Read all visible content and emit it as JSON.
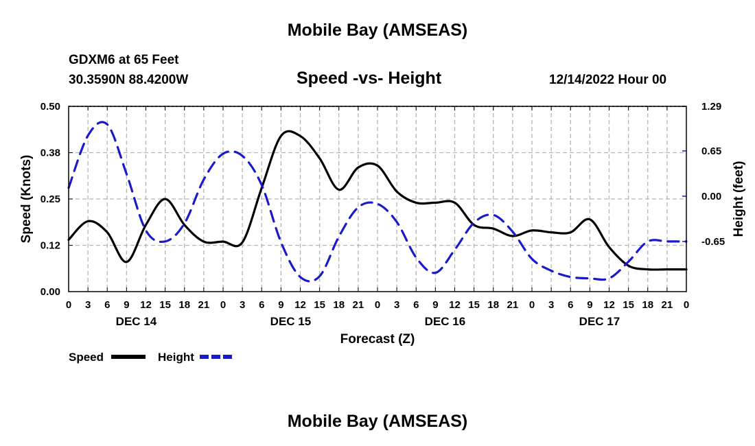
{
  "title": "Mobile Bay (AMSEAS)",
  "footer_title": "Mobile Bay (AMSEAS)",
  "station": "GDXM6 at 65 Feet",
  "location": "30.3590N  88.4200W",
  "subtitle": "Speed -vs- Height",
  "timestamp": "12/14/2022 Hour 00",
  "colors": {
    "speed": "#000000",
    "height": "#1a1acc",
    "grid": "#b4b4b4"
  },
  "chart_data": {
    "type": "line",
    "title": "Speed -vs- Height",
    "xlabel": "Forecast (Z)",
    "ylabel": "Speed (Knots)",
    "y2label": "Height (feet)",
    "x_unit": "hours",
    "xlim": [
      0,
      96
    ],
    "ylim": [
      0,
      0.5
    ],
    "y2lim": [
      -1.37,
      1.29
    ],
    "x_tick_labels": [
      "0",
      "3",
      "6",
      "9",
      "12",
      "15",
      "18",
      "21",
      "0",
      "3",
      "6",
      "9",
      "12",
      "15",
      "18",
      "21",
      "0",
      "3",
      "6",
      "9",
      "12",
      "15",
      "18",
      "21",
      "0",
      "3",
      "6",
      "9",
      "12",
      "15",
      "18",
      "21",
      "0"
    ],
    "day_labels": [
      {
        "label": "DEC 14",
        "hour": 10.5
      },
      {
        "label": "DEC 15",
        "hour": 34.5
      },
      {
        "label": "DEC 16",
        "hour": 58.5
      },
      {
        "label": "DEC 17",
        "hour": 82.5
      }
    ],
    "y_ticks": [
      "0.00",
      "0.12",
      "0.25",
      "0.38",
      "0.50"
    ],
    "y_tick_values": [
      0,
      0.125,
      0.25,
      0.375,
      0.5
    ],
    "y2_ticks": [
      "-0.65",
      "0.00",
      "0.65",
      "1.29"
    ],
    "y2_tick_values": [
      -0.65,
      0,
      0.65,
      1.29
    ],
    "legend": [
      {
        "label": "Speed",
        "style": "solid"
      },
      {
        "label": "Height",
        "style": "dashed"
      }
    ],
    "series": [
      {
        "name": "Speed",
        "axis": "left",
        "style": "solid",
        "x": [
          0,
          3,
          6,
          9,
          12,
          15,
          18,
          21,
          24,
          27,
          30,
          33,
          36,
          39,
          42,
          45,
          48,
          51,
          54,
          57,
          60,
          63,
          66,
          69,
          72,
          75,
          78,
          81,
          84,
          87,
          90,
          93,
          96
        ],
        "values": [
          0.14,
          0.19,
          0.16,
          0.08,
          0.18,
          0.25,
          0.18,
          0.135,
          0.135,
          0.133,
          0.28,
          0.42,
          0.42,
          0.36,
          0.275,
          0.335,
          0.34,
          0.27,
          0.24,
          0.24,
          0.24,
          0.18,
          0.17,
          0.15,
          0.165,
          0.16,
          0.16,
          0.195,
          0.12,
          0.07,
          0.06,
          0.06,
          0.06
        ]
      },
      {
        "name": "Height",
        "axis": "right",
        "style": "dashed",
        "x": [
          0,
          3,
          6,
          9,
          12,
          15,
          18,
          21,
          24,
          27,
          30,
          33,
          36,
          39,
          42,
          45,
          48,
          51,
          54,
          57,
          60,
          63,
          66,
          69,
          72,
          75,
          78,
          81,
          84,
          87,
          90,
          93,
          96
        ],
        "values": [
          0.12,
          0.87,
          1.03,
          0.32,
          -0.49,
          -0.65,
          -0.39,
          0.24,
          0.61,
          0.58,
          0.16,
          -0.66,
          -1.16,
          -1.15,
          -0.58,
          -0.16,
          -0.11,
          -0.37,
          -0.88,
          -1.1,
          -0.77,
          -0.38,
          -0.27,
          -0.51,
          -0.9,
          -1.07,
          -1.16,
          -1.18,
          -1.18,
          -0.94,
          -0.65,
          -0.65,
          -0.65
        ]
      }
    ]
  }
}
